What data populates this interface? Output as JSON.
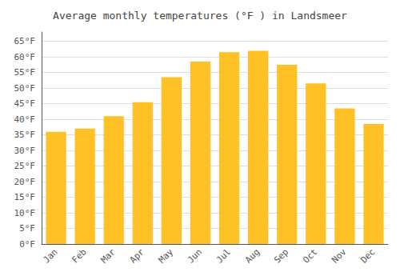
{
  "chart_data": {
    "type": "bar",
    "title": "Average monthly temperatures (°F ) in Landsmeer",
    "categories": [
      "Jan",
      "Feb",
      "Mar",
      "Apr",
      "May",
      "Jun",
      "Jul",
      "Aug",
      "Sep",
      "Oct",
      "Nov",
      "Dec"
    ],
    "values": [
      36,
      37,
      41,
      45.5,
      53.5,
      58.5,
      61.5,
      62,
      57.5,
      51.5,
      43.5,
      38.5
    ],
    "color": "#FFC125",
    "ylim": [
      0,
      68
    ],
    "yticks": [
      {
        "value": 0,
        "label": "0°F"
      },
      {
        "value": 5,
        "label": "5°F"
      },
      {
        "value": 10,
        "label": "10°F"
      },
      {
        "value": 15,
        "label": "15°F"
      },
      {
        "value": 20,
        "label": "20°F"
      },
      {
        "value": 25,
        "label": "25°F"
      },
      {
        "value": 30,
        "label": "30°F"
      },
      {
        "value": 35,
        "label": "35°F"
      },
      {
        "value": 40,
        "label": "40°F"
      },
      {
        "value": 45,
        "label": "45°F"
      },
      {
        "value": 50,
        "label": "50°F"
      },
      {
        "value": 55,
        "label": "55°F"
      },
      {
        "value": 60,
        "label": "60°F"
      },
      {
        "value": 65,
        "label": "65°F"
      }
    ],
    "grid": true
  }
}
